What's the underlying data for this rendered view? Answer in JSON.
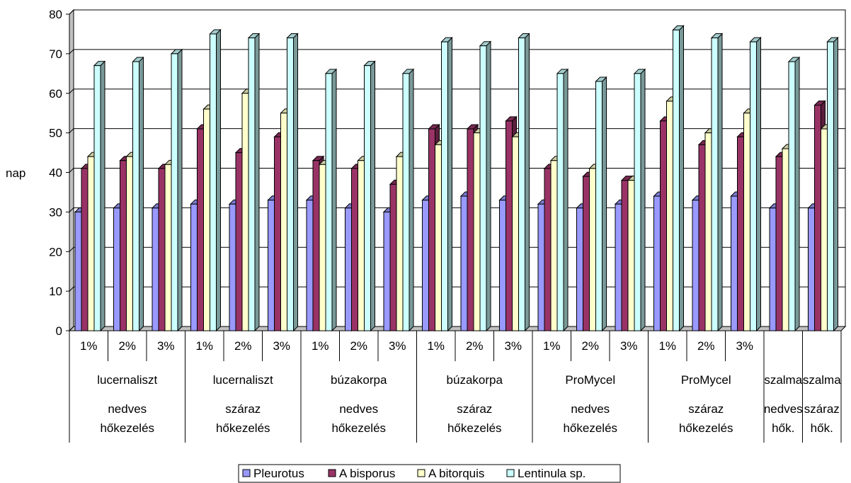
{
  "chart_data": {
    "type": "bar",
    "ylabel": "nap",
    "ylim": [
      0,
      80
    ],
    "yticks": [
      0,
      10,
      20,
      30,
      40,
      50,
      60,
      70,
      80
    ],
    "grid": true,
    "legend_position": "bottom",
    "groups": [
      {
        "pct": [
          "1%",
          "2%",
          "3%"
        ],
        "name": "lucernaliszt",
        "type_lines": [
          "nedves",
          "hőkezelés"
        ]
      },
      {
        "pct": [
          "1%",
          "2%",
          "3%"
        ],
        "name": "lucernaliszt",
        "type_lines": [
          "száraz",
          "hőkezelés"
        ]
      },
      {
        "pct": [
          "1%",
          "2%",
          "3%"
        ],
        "name": "búzakorpa",
        "type_lines": [
          "nedves",
          "hőkezelés"
        ]
      },
      {
        "pct": [
          "1%",
          "2%",
          "3%"
        ],
        "name": "búzakorpa",
        "type_lines": [
          "száraz",
          "hőkezelés"
        ]
      },
      {
        "pct": [
          "1%",
          "2%",
          "3%"
        ],
        "name": "ProMycel",
        "type_lines": [
          "nedves",
          "hőkezelés"
        ]
      },
      {
        "pct": [
          "1%",
          "2%",
          "3%"
        ],
        "name": "ProMycel",
        "type_lines": [
          "száraz",
          "hőkezelés"
        ]
      },
      {
        "pct": [
          ""
        ],
        "name": "szalma",
        "type_lines": [
          "nedves",
          "hők."
        ]
      },
      {
        "pct": [
          ""
        ],
        "name": "szalma",
        "type_lines": [
          "száraz",
          "hők."
        ]
      }
    ],
    "series": [
      {
        "name": "Pleurotus",
        "color": "#9999FF",
        "values": [
          30,
          31,
          31,
          32,
          32,
          33,
          33,
          31,
          30,
          33,
          34,
          33,
          32,
          31,
          32,
          34,
          33,
          34,
          31,
          31
        ]
      },
      {
        "name": "A bisporus",
        "color": "#993366",
        "values": [
          41,
          43,
          41,
          51,
          45,
          49,
          43,
          41,
          37,
          51,
          51,
          53,
          41,
          39,
          38,
          53,
          47,
          49,
          44,
          57
        ]
      },
      {
        "name": "A bitorquis",
        "color": "#FFFFCC",
        "values": [
          44,
          44,
          42,
          56,
          60,
          55,
          42,
          43,
          44,
          47,
          50,
          49,
          43,
          41,
          38,
          58,
          50,
          55,
          46,
          51
        ]
      },
      {
        "name": "Lentinula sp.",
        "color": "#CCFFFF",
        "values": [
          67,
          68,
          70,
          75,
          74,
          74,
          65,
          67,
          65,
          73,
          72,
          74,
          65,
          63,
          65,
          76,
          74,
          73,
          68,
          73
        ]
      }
    ]
  }
}
